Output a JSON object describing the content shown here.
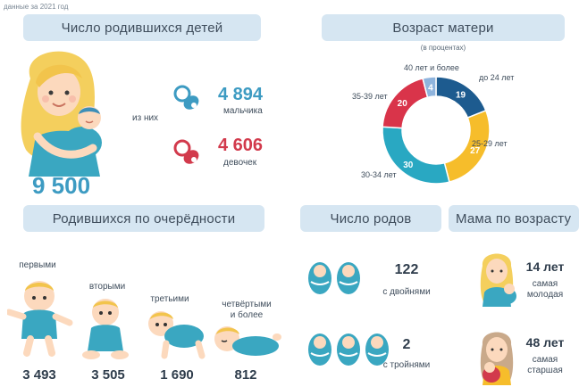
{
  "header": {
    "note": "данные за 2021 год"
  },
  "births": {
    "title": "Число родившихся детей",
    "total": "9 500",
    "of_them": "из них",
    "boys_value": "4 894",
    "boys_label": "мальчика",
    "girls_value": "4 606",
    "girls_label": "девочек"
  },
  "mother_age": {
    "title": "Возраст матери",
    "subtitle": "(в процентах)"
  },
  "birth_order": {
    "title": "Родившихся по очерёдности",
    "items": [
      {
        "label": "первыми",
        "value": "3 493"
      },
      {
        "label": "вторыми",
        "value": "3 505"
      },
      {
        "label": "третьими",
        "value": "1 690"
      },
      {
        "label": "четвёртыми\nи более",
        "value": "812"
      }
    ]
  },
  "deliveries": {
    "title": "Число родов",
    "twins_value": "122",
    "twins_label": "с двойнями",
    "triplets_value": "2",
    "triplets_label": "с тройнями"
  },
  "mom_by_age": {
    "title": "Мама по возрасту",
    "youngest_value": "14 лет",
    "youngest_label": "самая\nмолодая",
    "oldest_value": "48 лет",
    "oldest_label": "самая\nстаршая"
  },
  "colors": {
    "banner": "#d6e6f2",
    "blue": "#3d9bc2",
    "red": "#d23a4c",
    "navy": "#1d5b8f",
    "yellow": "#f6bd2b",
    "teal": "#29a8c2",
    "crimson": "#d9344a",
    "light_blue": "#8fb4dd"
  },
  "chart_data": {
    "type": "pie",
    "title": "Возраст матери",
    "subtitle": "(в процентах)",
    "categories": [
      "до 24 лет",
      "25-29 лет",
      "30-34 лет",
      "35-39 лет",
      "40 лет и более"
    ],
    "values": [
      19,
      27,
      30,
      20,
      4
    ],
    "colors": [
      "#1d5b8f",
      "#f6bd2b",
      "#29a8c2",
      "#d9344a",
      "#8fb4dd"
    ]
  }
}
